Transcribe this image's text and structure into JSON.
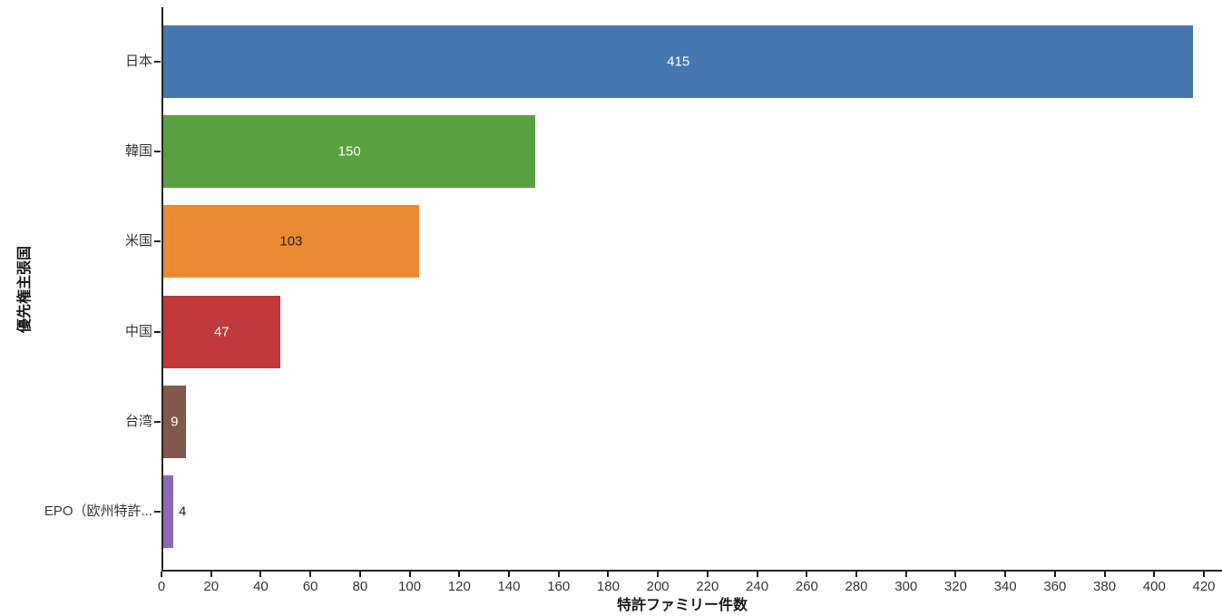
{
  "chart_data": {
    "type": "bar",
    "orientation": "horizontal",
    "title": "",
    "xlabel": "特許ファミリー件数",
    "ylabel": "優先権主張国",
    "categories": [
      "日本",
      "韓国",
      "米国",
      "中国",
      "台湾",
      "EPO（欧州特許..."
    ],
    "values": [
      415,
      150,
      103,
      47,
      9,
      4
    ],
    "bar_colors": [
      "#4577b1",
      "#57a140",
      "#ec8a33",
      "#c03a3b",
      "#82584c",
      "#8a6ab8"
    ],
    "value_labels": [
      "415",
      "150",
      "103",
      "47",
      "9",
      "4"
    ],
    "value_label_colors": [
      "#ffffff",
      "#ffffff",
      "#222222",
      "#ffffff",
      "#ffffff",
      "#222222"
    ],
    "value_label_positions": [
      "inside",
      "inside",
      "inside",
      "inside",
      "inside",
      "outside"
    ],
    "xlim": [
      0,
      420
    ],
    "x_ticks": [
      0,
      20,
      40,
      60,
      80,
      100,
      120,
      140,
      160,
      180,
      200,
      220,
      240,
      260,
      280,
      300,
      320,
      340,
      360,
      380,
      400,
      420
    ],
    "grid": false,
    "legend": "none",
    "background": "#ffffff",
    "axis_color": "#222222",
    "tick_text_color": "#33363b"
  }
}
